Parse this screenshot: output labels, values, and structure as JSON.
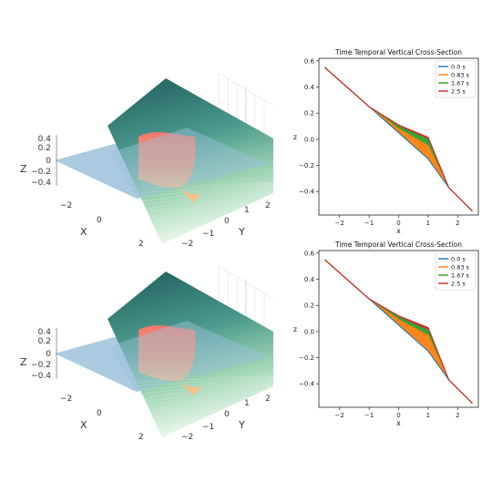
{
  "colors": {
    "surface_top": "#1e5c5c",
    "surface_bottom": "#d8f0dc",
    "plane": "#8fb8d4",
    "wave": "#f08a70",
    "wave_light": "#f6c08a"
  },
  "surfaces_3d": [
    {
      "x_label": "X",
      "y_label": "Y",
      "z_label": "Z",
      "x_ticks": [
        "−2",
        "0",
        "2"
      ],
      "y_ticks": [
        "−2",
        "−1",
        "0",
        "1",
        "2"
      ],
      "z_ticks": [
        "0.4",
        "0.2",
        "0",
        "−0.2",
        "−0.4"
      ]
    },
    {
      "x_label": "X",
      "y_label": "Y",
      "z_label": "Z",
      "x_ticks": [
        "−2",
        "0",
        "2"
      ],
      "y_ticks": [
        "−2",
        "−1",
        "0",
        "1",
        "2"
      ],
      "z_ticks": [
        "0.4",
        "0.2",
        "0",
        "−0.2",
        "−0.4"
      ]
    }
  ],
  "chart_data": [
    {
      "type": "line",
      "title": "Time Temporal Vertical Cross-Section",
      "xlabel": "x",
      "ylabel": "z",
      "xlim": [
        -2.7,
        2.7
      ],
      "ylim": [
        -0.58,
        0.62
      ],
      "x_ticks": [
        -2,
        -1,
        0,
        1,
        2
      ],
      "y_ticks": [
        -0.4,
        -0.2,
        0.0,
        0.2,
        0.4,
        0.6
      ],
      "x_tick_labels": [
        "−2",
        "−1",
        "0",
        "1",
        "2"
      ],
      "y_tick_labels": [
        "−0.4",
        "−0.2",
        "0.0",
        "0.2",
        "0.4",
        "0.6"
      ],
      "legend_position": "top-right",
      "series": [
        {
          "name": "0.0 s",
          "color": "#1f77b4",
          "x": [
            -2.5,
            -1.0,
            0.0,
            1.0,
            1.7,
            2.5
          ],
          "y": [
            0.55,
            0.25,
            0.05,
            -0.15,
            -0.37,
            -0.55
          ]
        },
        {
          "name": "0.83 s",
          "color": "#ff7f0e",
          "x": [
            -2.5,
            -1.0,
            0.0,
            1.0,
            1.7,
            2.5
          ],
          "y": [
            0.55,
            0.25,
            0.08,
            -0.05,
            -0.37,
            -0.55
          ]
        },
        {
          "name": "1.67 s",
          "color": "#2ca02c",
          "x": [
            -2.5,
            -1.0,
            0.0,
            1.0,
            1.7,
            2.5
          ],
          "y": [
            0.55,
            0.25,
            0.1,
            0.0,
            -0.37,
            -0.55
          ]
        },
        {
          "name": "2.5 s",
          "color": "#d62728",
          "x": [
            -2.5,
            -1.0,
            0.0,
            1.0,
            1.7,
            2.5
          ],
          "y": [
            0.55,
            0.25,
            0.11,
            0.015,
            -0.37,
            -0.55
          ]
        }
      ]
    },
    {
      "type": "line",
      "title": "Time Temporal Vertical Cross-Section",
      "xlabel": "x",
      "ylabel": "z",
      "xlim": [
        -2.7,
        2.7
      ],
      "ylim": [
        -0.58,
        0.62
      ],
      "x_ticks": [
        -2,
        -1,
        0,
        1,
        2
      ],
      "y_ticks": [
        -0.4,
        -0.2,
        0.0,
        0.2,
        0.4,
        0.6
      ],
      "x_tick_labels": [
        "−2",
        "−1",
        "0",
        "1",
        "2"
      ],
      "y_tick_labels": [
        "−0.4",
        "−0.2",
        "0.0",
        "0.2",
        "0.4",
        "0.6"
      ],
      "legend_position": "top-right",
      "series": [
        {
          "name": "0.0 s",
          "color": "#1f77b4",
          "x": [
            -2.5,
            -1.0,
            0.0,
            1.0,
            1.7,
            2.5
          ],
          "y": [
            0.55,
            0.25,
            0.05,
            -0.15,
            -0.37,
            -0.55
          ]
        },
        {
          "name": "0.83 s",
          "color": "#ff7f0e",
          "x": [
            -2.5,
            -1.0,
            0.0,
            1.0,
            1.7,
            2.5
          ],
          "y": [
            0.55,
            0.25,
            0.09,
            -0.03,
            -0.37,
            -0.55
          ]
        },
        {
          "name": "1.67 s",
          "color": "#2ca02c",
          "x": [
            -2.5,
            -1.0,
            0.0,
            1.0,
            1.7,
            2.5
          ],
          "y": [
            0.55,
            0.25,
            0.11,
            0.01,
            -0.37,
            -0.55
          ]
        },
        {
          "name": "2.5 s",
          "color": "#d62728",
          "x": [
            -2.5,
            -1.0,
            0.0,
            1.0,
            1.7,
            2.5
          ],
          "y": [
            0.55,
            0.25,
            0.12,
            0.03,
            -0.37,
            -0.55
          ]
        }
      ]
    }
  ]
}
